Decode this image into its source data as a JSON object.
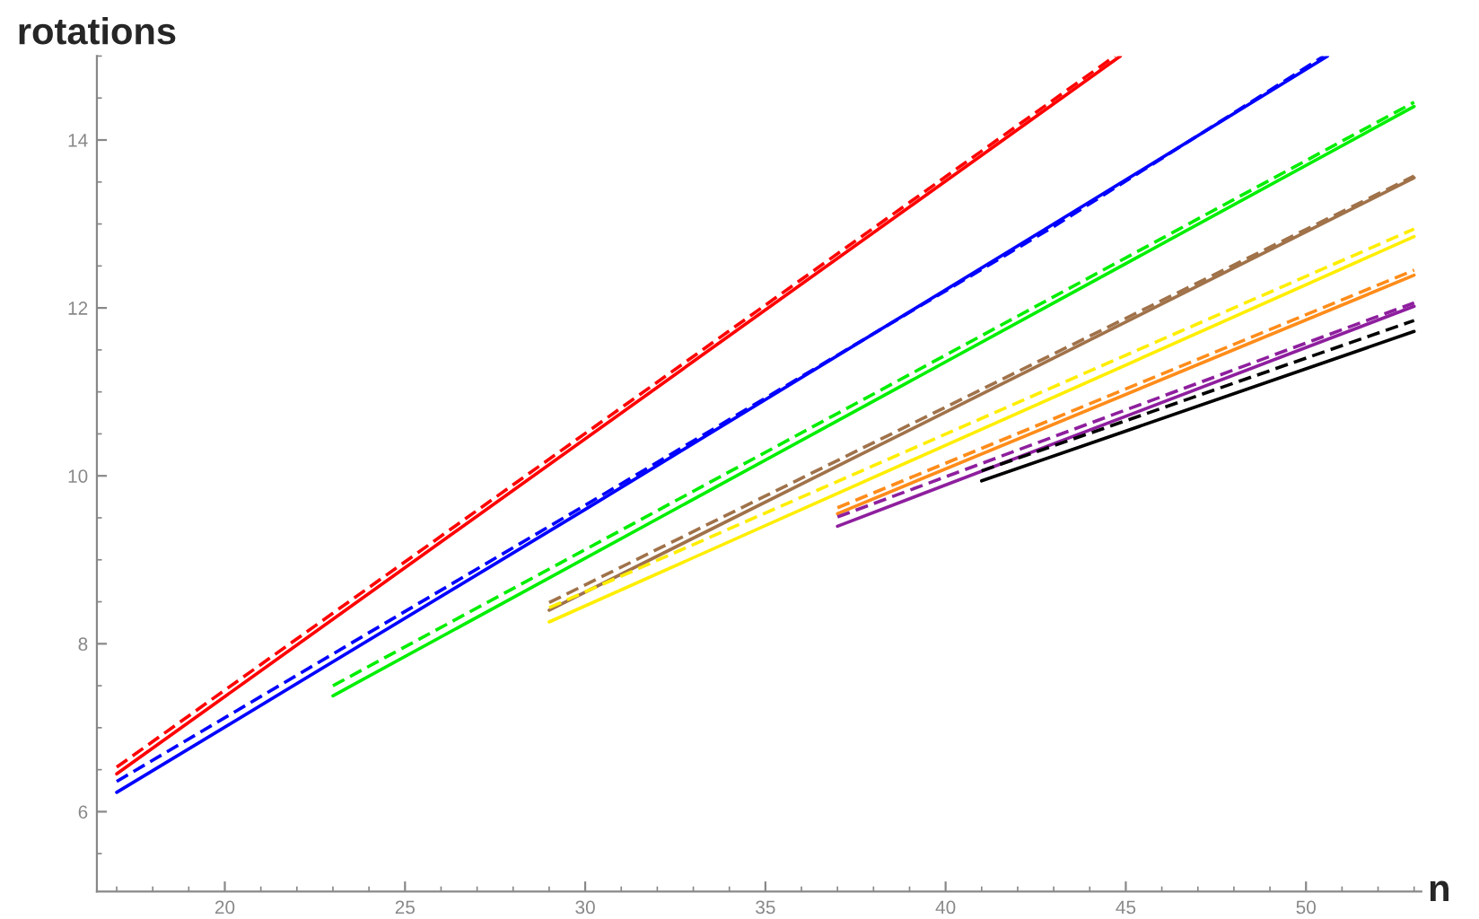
{
  "chart_data": {
    "type": "line",
    "xlabel": "n",
    "ylabel": "rotations",
    "xlim": [
      16.45,
      53.2
    ],
    "ylim": [
      5.05,
      15
    ],
    "xticks": [
      20,
      25,
      30,
      35,
      40,
      45,
      50
    ],
    "yticks": [
      6,
      8,
      10,
      12,
      14
    ],
    "grid": false,
    "legend": false,
    "series": [
      {
        "color": "#ff0000",
        "line_style": "solid",
        "x": [
          17,
          44.85
        ],
        "values": [
          6.45,
          15
        ]
      },
      {
        "color": "#ff0000",
        "line_style": "dashed",
        "x": [
          17,
          44.7
        ],
        "values": [
          6.53,
          15
        ]
      },
      {
        "color": "#0000ff",
        "line_style": "solid",
        "x": [
          17,
          30,
          43,
          50.6
        ],
        "values": [
          6.23,
          9.6,
          13.0,
          15
        ]
      },
      {
        "color": "#0000ff",
        "line_style": "dashed",
        "x": [
          17,
          30,
          43,
          50.5
        ],
        "values": [
          6.36,
          9.65,
          12.97,
          15
        ]
      },
      {
        "color": "#00ee00",
        "line_style": "solid",
        "x": [
          23,
          53
        ],
        "values": [
          7.38,
          14.4
        ]
      },
      {
        "color": "#00ee00",
        "line_style": "dashed",
        "x": [
          23,
          53
        ],
        "values": [
          7.5,
          14.45
        ]
      },
      {
        "color": "#a0724a",
        "line_style": "solid",
        "x": [
          29,
          53
        ],
        "values": [
          8.4,
          13.55
        ]
      },
      {
        "color": "#a0724a",
        "line_style": "dashed",
        "x": [
          29,
          53
        ],
        "values": [
          8.49,
          13.57
        ]
      },
      {
        "color": "#ffee00",
        "line_style": "solid",
        "x": [
          29,
          53
        ],
        "values": [
          8.26,
          12.85
        ]
      },
      {
        "color": "#ffee00",
        "line_style": "dashed",
        "x": [
          29,
          53
        ],
        "values": [
          8.43,
          12.94
        ]
      },
      {
        "color": "#ff8c1a",
        "line_style": "solid",
        "x": [
          37,
          53
        ],
        "values": [
          9.55,
          12.39
        ]
      },
      {
        "color": "#ff8c1a",
        "line_style": "dashed",
        "x": [
          37,
          53
        ],
        "values": [
          9.62,
          12.45
        ]
      },
      {
        "color": "#8e1f9e",
        "line_style": "solid",
        "x": [
          37,
          53
        ],
        "values": [
          9.4,
          12.02
        ]
      },
      {
        "color": "#8e1f9e",
        "line_style": "dashed",
        "x": [
          37,
          53
        ],
        "values": [
          9.51,
          12.06
        ]
      },
      {
        "color": "#000000",
        "line_style": "solid",
        "x": [
          41,
          53
        ],
        "values": [
          9.94,
          11.72
        ]
      },
      {
        "color": "#000000",
        "line_style": "dashed",
        "x": [
          41,
          53
        ],
        "values": [
          10.06,
          11.85
        ]
      }
    ]
  }
}
